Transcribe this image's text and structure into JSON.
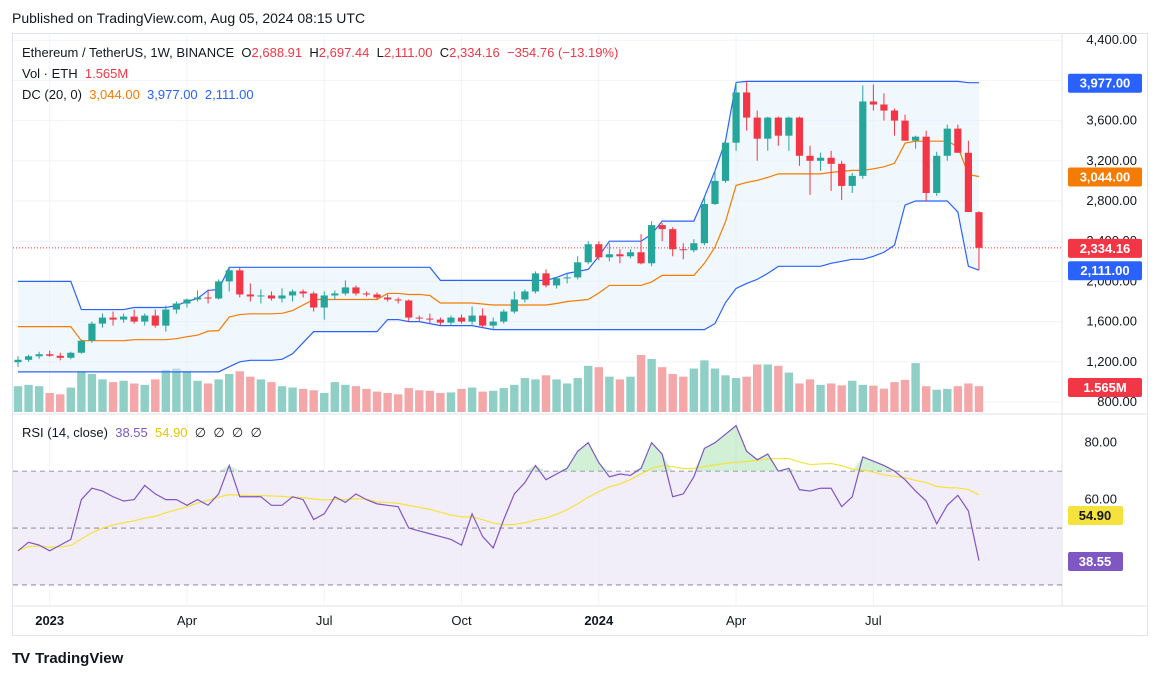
{
  "header": {
    "published": "Published on TradingView.com, Aug 05, 2024 08:15 UTC"
  },
  "legend": {
    "symbol": "Ethereum / TetherUS, 1W, BINANCE",
    "o_label": "O",
    "o": "2,688.91",
    "h_label": "H",
    "h": "2,697.44",
    "l_label": "L",
    "l": "2,111.00",
    "c_label": "C",
    "c": "2,334.16",
    "change": "−354.76 (−13.19%)",
    "vol_label": "Vol · ETH",
    "vol": "1.565M",
    "dc_label": "DC (20, 0)",
    "dc_mid": "3,044.00",
    "dc_upper": "3,977.00",
    "dc_lower": "2,111.00",
    "rsi_label": "RSI (14, close)",
    "rsi": "38.55",
    "rsi_ma": "54.90",
    "rsi_extras": [
      "∅",
      "∅",
      "∅",
      "∅"
    ]
  },
  "brand": {
    "name": "TradingView",
    "logo": "TV"
  },
  "colors": {
    "up": "#26a69a",
    "down": "#f23645",
    "vol_up": "#8fcfc6",
    "vol_down": "#f4a7a9",
    "dc_band": "#2962ff",
    "dc_mid": "#f57c00",
    "dc_fill": "#e3f0fb",
    "rsi": "#7e57c2",
    "rsi_ma": "#f5e23c",
    "rsi_bg": "#ede7f6"
  },
  "chart_data": {
    "type": "candlestick",
    "price_axis": {
      "ticks": [
        800,
        1200,
        1600,
        2000,
        2400,
        2800,
        3200,
        3600,
        4000,
        4400
      ],
      "tick_labels": [
        "800.00",
        "1,200.00",
        "1,600.00",
        "2,000.00",
        "2,400.00",
        "2,800.00",
        "3,200.00",
        "3,600.00",
        "4,000.00",
        "4,400.00"
      ]
    },
    "rsi_axis": {
      "ticks": [
        60,
        80
      ],
      "tick_labels": [
        "60.00",
        "80.00"
      ],
      "levels": [
        70,
        50,
        30
      ]
    },
    "time_labels": [
      {
        "label": "2023",
        "index": 3,
        "bold": true
      },
      {
        "label": "Apr",
        "index": 16,
        "bold": false
      },
      {
        "label": "Jul",
        "index": 29,
        "bold": false
      },
      {
        "label": "Oct",
        "index": 42,
        "bold": false
      },
      {
        "label": "2024",
        "index": 55,
        "bold": true
      },
      {
        "label": "Apr",
        "index": 68,
        "bold": false
      },
      {
        "label": "Jul",
        "index": 81,
        "bold": false
      }
    ],
    "price_badges": [
      {
        "value": 3977.0,
        "label": "3,977.00",
        "color": "#2962ff"
      },
      {
        "value": 3044.0,
        "label": "3,044.00",
        "color": "#f57c00"
      },
      {
        "value": 2334.16,
        "label": "2,334.16",
        "color": "#f23645"
      },
      {
        "value": 2111.0,
        "label": "2,111.00",
        "color": "#2962ff"
      }
    ],
    "volume_badge": {
      "label": "1.565M",
      "color": "#f23645"
    },
    "rsi_badges": [
      {
        "value": 54.9,
        "label": "54.90",
        "color": "#f5e23c"
      },
      {
        "value": 38.55,
        "label": "38.55",
        "color": "#7e57c2"
      }
    ],
    "last_close": 2334.16,
    "candles": [
      [
        1196.0,
        1254.0,
        1150.0,
        1220.0
      ],
      [
        1220.0,
        1270.0,
        1200.0,
        1255.0
      ],
      [
        1255.0,
        1300.0,
        1230.0,
        1275.0
      ],
      [
        1275.0,
        1310.0,
        1250.0,
        1260.0
      ],
      [
        1260.0,
        1290.0,
        1215.0,
        1240.0
      ],
      [
        1240.0,
        1300.0,
        1225.0,
        1290.0
      ],
      [
        1290.0,
        1420.0,
        1280.0,
        1410.0
      ],
      [
        1410.0,
        1600.0,
        1390.0,
        1580.0
      ],
      [
        1580.0,
        1680.0,
        1540.0,
        1640.0
      ],
      [
        1640.0,
        1700.0,
        1560.0,
        1620.0
      ],
      [
        1620.0,
        1680.0,
        1590.0,
        1650.0
      ],
      [
        1650.0,
        1720.0,
        1580.0,
        1600.0
      ],
      [
        1600.0,
        1680.0,
        1560.0,
        1660.0
      ],
      [
        1660.0,
        1720.0,
        1540.0,
        1560.0
      ],
      [
        1560.0,
        1760.0,
        1500.0,
        1720.0
      ],
      [
        1720.0,
        1800.0,
        1680.0,
        1780.0
      ],
      [
        1780.0,
        1830.0,
        1740.0,
        1820.0
      ],
      [
        1820.0,
        1910.0,
        1800.0,
        1840.0
      ],
      [
        1840.0,
        1920.0,
        1780.0,
        1830.0
      ],
      [
        1830.0,
        2020.0,
        1820.0,
        2000.0
      ],
      [
        2000.0,
        2140.0,
        1900.0,
        2110.0
      ],
      [
        2110.0,
        2140.0,
        1840.0,
        1870.0
      ],
      [
        1870.0,
        1980.0,
        1800.0,
        1850.0
      ],
      [
        1850.0,
        1920.0,
        1780.0,
        1860.0
      ],
      [
        1860.0,
        1900.0,
        1810.0,
        1830.0
      ],
      [
        1830.0,
        1930.0,
        1790.0,
        1860.0
      ],
      [
        1860.0,
        1920.0,
        1800.0,
        1900.0
      ],
      [
        1900.0,
        1920.0,
        1840.0,
        1880.0
      ],
      [
        1880.0,
        1900.0,
        1700.0,
        1740.0
      ],
      [
        1740.0,
        1900.0,
        1620.0,
        1860.0
      ],
      [
        1860.0,
        1910.0,
        1820.0,
        1880.0
      ],
      [
        1880.0,
        2010.0,
        1860.0,
        1940.0
      ],
      [
        1940.0,
        1960.0,
        1860.0,
        1880.0
      ],
      [
        1880.0,
        1900.0,
        1850.0,
        1870.0
      ],
      [
        1870.0,
        1890.0,
        1820.0,
        1840.0
      ],
      [
        1840.0,
        1870.0,
        1800.0,
        1820.0
      ],
      [
        1820.0,
        1840.0,
        1780.0,
        1810.0
      ],
      [
        1810.0,
        1820.0,
        1600.0,
        1640.0
      ],
      [
        1640.0,
        1660.0,
        1600.0,
        1630.0
      ],
      [
        1630.0,
        1680.0,
        1580.0,
        1620.0
      ],
      [
        1620.0,
        1640.0,
        1560.0,
        1590.0
      ],
      [
        1590.0,
        1660.0,
        1560.0,
        1640.0
      ],
      [
        1640.0,
        1670.0,
        1580.0,
        1600.0
      ],
      [
        1600.0,
        1750.0,
        1570.0,
        1660.0
      ],
      [
        1660.0,
        1730.0,
        1540.0,
        1560.0
      ],
      [
        1560.0,
        1640.0,
        1520.0,
        1600.0
      ],
      [
        1600.0,
        1720.0,
        1580.0,
        1700.0
      ],
      [
        1700.0,
        1900.0,
        1680.0,
        1820.0
      ],
      [
        1820.0,
        1920.0,
        1790.0,
        1900.0
      ],
      [
        1900.0,
        2100.0,
        1880.0,
        2080.0
      ],
      [
        2080.0,
        2120.0,
        1940.0,
        1960.0
      ],
      [
        1960.0,
        2040.0,
        1930.0,
        2030.0
      ],
      [
        2030.0,
        2080.0,
        1980.0,
        2040.0
      ],
      [
        2040.0,
        2250.0,
        2020.0,
        2190.0
      ],
      [
        2190.0,
        2400.0,
        2170.0,
        2370.0
      ],
      [
        2370.0,
        2400.0,
        2210.0,
        2240.0
      ],
      [
        2240.0,
        2380.0,
        2200.0,
        2270.0
      ],
      [
        2270.0,
        2320.0,
        2180.0,
        2250.0
      ],
      [
        2250.0,
        2320.0,
        2230.0,
        2290.0
      ],
      [
        2290.0,
        2470.0,
        2170.0,
        2180.0
      ],
      [
        2180.0,
        2600.0,
        2150.0,
        2560.0
      ],
      [
        2560.0,
        2580.0,
        2400.0,
        2520.0
      ],
      [
        2520.0,
        2540.0,
        2250.0,
        2320.0
      ],
      [
        2320.0,
        2380.0,
        2220.0,
        2310.0
      ],
      [
        2310.0,
        2420.0,
        2290.0,
        2380.0
      ],
      [
        2380.0,
        2840.0,
        2360.0,
        2770.0
      ],
      [
        2770.0,
        3100.0,
        2760.0,
        3000.0
      ],
      [
        3000.0,
        3400.0,
        2980.0,
        3380.0
      ],
      [
        3380.0,
        3980.0,
        3300.0,
        3880.0
      ],
      [
        3880.0,
        3990.0,
        3500.0,
        3630.0
      ],
      [
        3630.0,
        3700.0,
        3200.0,
        3420.0
      ],
      [
        3420.0,
        3640.0,
        3300.0,
        3630.0
      ],
      [
        3630.0,
        3640.0,
        3350.0,
        3450.0
      ],
      [
        3450.0,
        3640.0,
        3300.0,
        3630.0
      ],
      [
        3630.0,
        3640.0,
        3150.0,
        3250.0
      ],
      [
        3250.0,
        3350.0,
        2860.0,
        3200.0
      ],
      [
        3200.0,
        3280.0,
        3100.0,
        3230.0
      ],
      [
        3230.0,
        3300.0,
        2900.0,
        3170.0
      ],
      [
        3170.0,
        3200.0,
        2810.0,
        2950.0
      ],
      [
        2950.0,
        3080.0,
        2880.0,
        3050.0
      ],
      [
        3050.0,
        3950.0,
        3020.0,
        3790.0
      ],
      [
        3790.0,
        3960.0,
        3700.0,
        3760.0
      ],
      [
        3760.0,
        3870.0,
        3600.0,
        3700.0
      ],
      [
        3700.0,
        3720.0,
        3450.0,
        3600.0
      ],
      [
        3600.0,
        3660.0,
        3400.0,
        3400.0
      ],
      [
        3400.0,
        3450.0,
        3320.0,
        3440.0
      ],
      [
        3440.0,
        3500.0,
        2800.0,
        2880.0
      ],
      [
        2880.0,
        3290.0,
        2850.0,
        3250.0
      ],
      [
        3250.0,
        3560.0,
        3200.0,
        3520.0
      ],
      [
        3520.0,
        3560.0,
        3280.0,
        3280.0
      ],
      [
        3280.0,
        3400.0,
        2690.0,
        2690.0
      ],
      [
        2688.91,
        2697.44,
        2111.0,
        2334.16
      ]
    ],
    "donchian": {
      "upper": [
        2000.0,
        2000.0,
        2000.0,
        2000.0,
        2000.0,
        2000.0,
        1720.0,
        1720.0,
        1720.0,
        1720.0,
        1720.0,
        1740.0,
        1740.0,
        1740.0,
        1740.0,
        1760.0,
        1800.0,
        1830.0,
        1910.0,
        1920.0,
        2140.0,
        2140.0,
        2140.0,
        2140.0,
        2140.0,
        2140.0,
        2140.0,
        2140.0,
        2140.0,
        2140.0,
        2140.0,
        2140.0,
        2140.0,
        2140.0,
        2140.0,
        2140.0,
        2140.0,
        2140.0,
        2140.0,
        2140.0,
        2010.0,
        2010.0,
        2010.0,
        2010.0,
        2010.0,
        2010.0,
        2010.0,
        2010.0,
        2010.0,
        2010.0,
        2010.0,
        2040.0,
        2080.0,
        2100.0,
        2120.0,
        2250.0,
        2400.0,
        2400.0,
        2400.0,
        2400.0,
        2470.0,
        2600.0,
        2600.0,
        2600.0,
        2600.0,
        2840.0,
        3100.0,
        3400.0,
        3980.0,
        3990.0,
        3990.0,
        3990.0,
        3990.0,
        3990.0,
        3990.0,
        3990.0,
        3990.0,
        3990.0,
        3990.0,
        3990.0,
        3990.0,
        3990.0,
        3990.0,
        3990.0,
        3990.0,
        3990.0,
        3990.0,
        3990.0,
        3990.0,
        3990.0,
        3977.0,
        3977.0
      ],
      "lower": [
        1100.0,
        1100.0,
        1100.0,
        1100.0,
        1100.0,
        1100.0,
        1100.0,
        1100.0,
        1100.0,
        1100.0,
        1100.0,
        1100.0,
        1100.0,
        1100.0,
        1100.0,
        1100.0,
        1100.0,
        1100.0,
        1100.0,
        1100.0,
        1150.0,
        1200.0,
        1215.0,
        1215.0,
        1215.0,
        1225.0,
        1280.0,
        1390.0,
        1500.0,
        1500.0,
        1500.0,
        1500.0,
        1500.0,
        1500.0,
        1500.0,
        1620.0,
        1620.0,
        1600.0,
        1600.0,
        1580.0,
        1560.0,
        1560.0,
        1560.0,
        1560.0,
        1540.0,
        1520.0,
        1520.0,
        1520.0,
        1520.0,
        1520.0,
        1520.0,
        1520.0,
        1520.0,
        1520.0,
        1520.0,
        1520.0,
        1520.0,
        1520.0,
        1520.0,
        1520.0,
        1520.0,
        1520.0,
        1520.0,
        1520.0,
        1520.0,
        1520.0,
        1580.0,
        1790.0,
        1930.0,
        1980.0,
        2020.0,
        2080.0,
        2150.0,
        2150.0,
        2150.0,
        2150.0,
        2150.0,
        2180.0,
        2200.0,
        2220.0,
        2220.0,
        2250.0,
        2290.0,
        2360.0,
        2760.0,
        2800.0,
        2800.0,
        2800.0,
        2800.0,
        2690.0,
        2150.0,
        2111.0
      ],
      "middle": [
        1550.0,
        1550.0,
        1550.0,
        1550.0,
        1550.0,
        1550.0,
        1410.0,
        1410.0,
        1410.0,
        1410.0,
        1410.0,
        1420.0,
        1420.0,
        1420.0,
        1420.0,
        1430.0,
        1450.0,
        1465.0,
        1505.0,
        1510.0,
        1645.0,
        1670.0,
        1677.5,
        1677.5,
        1677.5,
        1682.5,
        1710.0,
        1765.0,
        1820.0,
        1820.0,
        1820.0,
        1820.0,
        1820.0,
        1820.0,
        1820.0,
        1880.0,
        1880.0,
        1870.0,
        1870.0,
        1860.0,
        1785.0,
        1785.0,
        1785.0,
        1785.0,
        1775.0,
        1765.0,
        1765.0,
        1765.0,
        1765.0,
        1765.0,
        1765.0,
        1780.0,
        1800.0,
        1810.0,
        1820.0,
        1885.0,
        1960.0,
        1960.0,
        1960.0,
        1960.0,
        1995.0,
        2060.0,
        2060.0,
        2060.0,
        2060.0,
        2180.0,
        2340.0,
        2595.0,
        2955.0,
        2985.0,
        3005.0,
        3035.0,
        3070.0,
        3070.0,
        3070.0,
        3070.0,
        3070.0,
        3085.0,
        3095.0,
        3105.0,
        3105.0,
        3120.0,
        3140.0,
        3175.0,
        3375.0,
        3395.0,
        3395.0,
        3395.0,
        3395.0,
        3340.0,
        3063.0,
        3044.0
      ]
    },
    "volume": [
      95,
      100,
      95,
      70,
      65,
      90,
      150,
      140,
      120,
      110,
      115,
      105,
      100,
      120,
      155,
      160,
      150,
      115,
      105,
      120,
      140,
      150,
      130,
      120,
      110,
      95,
      90,
      85,
      80,
      70,
      110,
      100,
      95,
      85,
      75,
      70,
      65,
      88,
      80,
      78,
      70,
      72,
      85,
      90,
      75,
      78,
      88,
      100,
      125,
      120,
      135,
      120,
      105,
      125,
      170,
      165,
      130,
      120,
      130,
      210,
      195,
      165,
      140,
      130,
      160,
      190,
      160,
      135,
      125,
      130,
      175,
      175,
      170,
      145,
      105,
      120,
      100,
      105,
      98,
      115,
      100,
      97,
      86,
      110,
      118,
      180,
      95,
      82,
      85,
      95,
      105,
      95
    ],
    "volume_axis_max": 265,
    "rsi": [
      42.0,
      45.0,
      44.0,
      42.0,
      44.0,
      46.0,
      60.0,
      64.0,
      63.0,
      61.0,
      59.5,
      60.0,
      65.0,
      62.0,
      60.0,
      60.0,
      58.0,
      60.0,
      58.0,
      62.0,
      72.0,
      61.0,
      61.0,
      61.0,
      58.0,
      58.0,
      61.0,
      60.0,
      53.0,
      55.0,
      61.0,
      59.0,
      62.0,
      60.0,
      58.5,
      58.0,
      57.5,
      50.0,
      49.0,
      48.0,
      47.0,
      46.0,
      44.0,
      55.0,
      47.0,
      43.0,
      53.0,
      62.0,
      66.0,
      72.0,
      67.0,
      69.0,
      71.0,
      77.0,
      80.0,
      73.0,
      68.0,
      69.0,
      68.5,
      71.0,
      80.0,
      76.0,
      61.0,
      62.0,
      68.0,
      78.0,
      80.0,
      83.0,
      86.0,
      77.0,
      74.0,
      76.0,
      70.0,
      71.0,
      63.5,
      63.0,
      64.0,
      64.0,
      57.5,
      61.0,
      75.0,
      73.5,
      72.0,
      70.0,
      67.0,
      63.0,
      59.5,
      51.5,
      58.0,
      61.5,
      56.0,
      38.55
    ]
  }
}
